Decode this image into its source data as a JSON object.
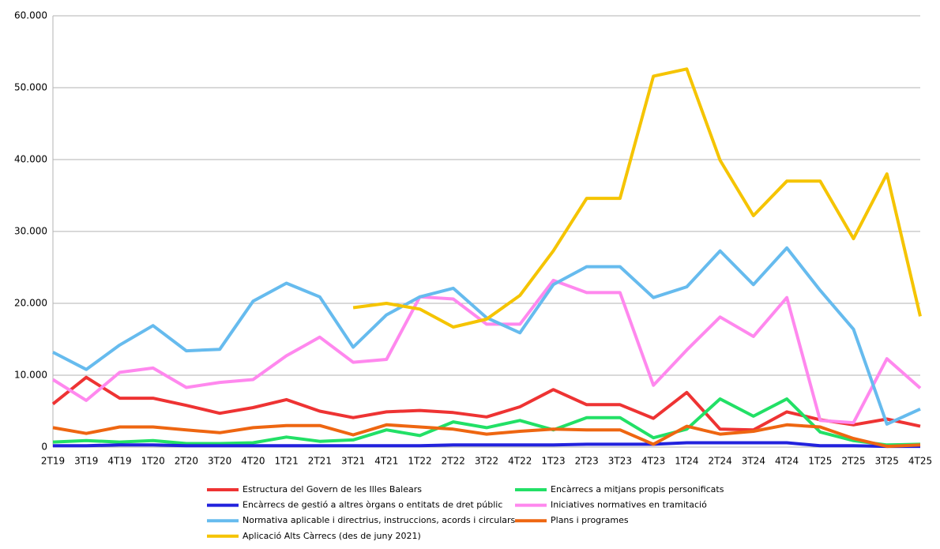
{
  "chart_data": {
    "type": "line",
    "categories": [
      "2T19",
      "3T19",
      "4T19",
      "1T20",
      "2T20",
      "3T20",
      "4T20",
      "1T21",
      "2T21",
      "3T21",
      "4T21",
      "1T22",
      "2T22",
      "3T22",
      "4T22",
      "1T23",
      "2T23",
      "3T23",
      "4T23",
      "1T24",
      "2T24",
      "3T24",
      "4T24",
      "1T25",
      "2T25",
      "3T25",
      "4T25"
    ],
    "ylim": [
      0,
      60000
    ],
    "yticks": [
      0,
      {
        "value": 10000,
        "label": "10.000"
      },
      {
        "value": 20000,
        "label": "20.000"
      },
      {
        "value": 30000,
        "label": "30.000"
      },
      {
        "value": 40000,
        "label": "40.000"
      },
      {
        "value": 50000,
        "label": "50.000"
      },
      {
        "value": 60000,
        "label": "60.000"
      }
    ],
    "grid": true,
    "legend": "bottom",
    "series": [
      {
        "name": "Estructura del Govern de les Illes Balears",
        "color": "#ee3333",
        "values": [
          6000,
          9700,
          6800,
          6800,
          5800,
          4700,
          5500,
          6600,
          5000,
          4100,
          4900,
          5100,
          4800,
          4200,
          5600,
          8000,
          5900,
          5900,
          4000,
          7600,
          2500,
          2400,
          4900,
          3800,
          3100,
          3900,
          2900
        ]
      },
      {
        "name": "Encàrrecs a mitjans propis personificats",
        "color": "#22e066",
        "values": [
          700,
          900,
          700,
          900,
          500,
          500,
          600,
          1400,
          800,
          1000,
          2400,
          1600,
          3500,
          2700,
          3700,
          2400,
          4100,
          4100,
          1300,
          2500,
          6700,
          4300,
          6700,
          2100,
          900,
          300,
          400
        ]
      },
      {
        "name": "Encàrrecs de gestió a altres òrgans o entitats de dret públic",
        "color": "#2222dd",
        "values": [
          200,
          200,
          300,
          300,
          200,
          200,
          200,
          200,
          200,
          200,
          200,
          200,
          300,
          300,
          300,
          300,
          400,
          400,
          400,
          600,
          600,
          600,
          600,
          200,
          200,
          100,
          100
        ]
      },
      {
        "name": "Iniciatives normatives en tramitació",
        "color": "#ff88ee",
        "values": [
          9400,
          6500,
          10400,
          11000,
          8300,
          9000,
          9400,
          12700,
          15300,
          11800,
          12200,
          20900,
          20600,
          17100,
          17100,
          23200,
          21500,
          21500,
          8600,
          13500,
          18100,
          15400,
          20800,
          3700,
          3400,
          12300,
          8200
        ]
      },
      {
        "name": "Normativa aplicable i directrius, instruccions, acords i circulars",
        "color": "#66bbee",
        "values": [
          13200,
          10800,
          14200,
          16900,
          13400,
          13600,
          20300,
          22800,
          20900,
          13900,
          18400,
          20900,
          22100,
          18000,
          15900,
          22600,
          25100,
          25100,
          20800,
          22300,
          27300,
          22600,
          27700,
          21800,
          16400,
          3200,
          5300
        ]
      },
      {
        "name": "Plans i programes",
        "color": "#ee6611",
        "values": [
          2700,
          1900,
          2800,
          2800,
          2400,
          2000,
          2700,
          3000,
          3000,
          1700,
          3100,
          2800,
          2500,
          1800,
          2200,
          2500,
          2400,
          2400,
          400,
          2900,
          1800,
          2200,
          3100,
          2800,
          1200,
          100,
          300
        ]
      },
      {
        "name": "Aplicació Alts Càrrecs (des de juny 2021)",
        "color": "#f5c400",
        "values": [
          null,
          null,
          null,
          null,
          null,
          null,
          null,
          null,
          null,
          19400,
          20000,
          19200,
          16700,
          17800,
          21100,
          27300,
          34600,
          34600,
          51600,
          52600,
          39900,
          32200,
          37000,
          37000,
          29000,
          38000,
          18200
        ]
      }
    ]
  }
}
